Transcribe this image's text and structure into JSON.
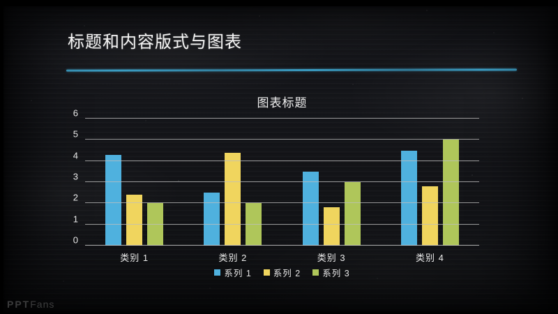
{
  "slide": {
    "title": "标题和内容版式与图表",
    "accent_color": "#3A9CC2",
    "watermark": {
      "bold": "PPT",
      "regular": "Fans"
    }
  },
  "chart_data": {
    "type": "bar",
    "title": "图表标题",
    "categories": [
      "类别 1",
      "类别 2",
      "类别 3",
      "类别 4"
    ],
    "series": [
      {
        "name": "系列 1",
        "color": "#4FB1DE",
        "values": [
          4.3,
          2.5,
          3.5,
          4.5
        ]
      },
      {
        "name": "系列 2",
        "color": "#F0D55E",
        "values": [
          2.4,
          4.4,
          1.8,
          2.8
        ]
      },
      {
        "name": "系列 3",
        "color": "#AFC65A",
        "values": [
          2.0,
          2.0,
          3.0,
          5.0
        ]
      }
    ],
    "xlabel": "",
    "ylabel": "",
    "ylim": [
      0,
      6
    ],
    "yticks": [
      0,
      1,
      2,
      3,
      4,
      5,
      6
    ],
    "grid": true,
    "legend_position": "bottom"
  }
}
